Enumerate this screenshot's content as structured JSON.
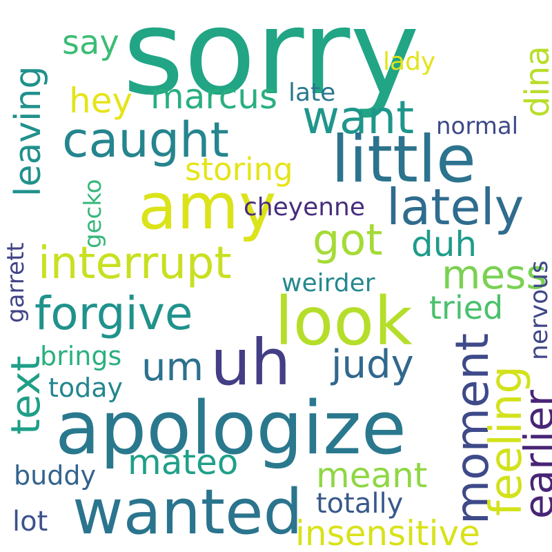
{
  "words": {
    "sorry": {
      "text": "sorry",
      "color": "#21A585"
    },
    "little": {
      "text": "little",
      "color": "#2C738E"
    },
    "amy": {
      "text": "amy",
      "color": "#DBE31A"
    },
    "apologize": {
      "text": "apologize",
      "color": "#2A788E"
    },
    "look": {
      "text": "look",
      "color": "#B5DE2B"
    },
    "uh": {
      "text": "uh",
      "color": "#433E85"
    },
    "wanted": {
      "text": "wanted",
      "color": "#2B748E"
    },
    "lately": {
      "text": "lately",
      "color": "#2F6C8E"
    },
    "caught": {
      "text": "caught",
      "color": "#25858E"
    },
    "want": {
      "text": "want",
      "color": "#1F968B"
    },
    "interrupt": {
      "text": "interrupt",
      "color": "#C8E020"
    },
    "forgive": {
      "text": "forgive",
      "color": "#20928C"
    },
    "got": {
      "text": "got",
      "color": "#A5DB36"
    },
    "moment": {
      "text": "moment",
      "color": "#3E4A89"
    },
    "feeling": {
      "text": "feeling",
      "color": "#D2E21B"
    },
    "earlier": {
      "text": "earlier",
      "color": "#482576"
    },
    "marcus": {
      "text": "marcus",
      "color": "#29AF7F"
    },
    "hey": {
      "text": "hey",
      "color": "#E5E419"
    },
    "leaving": {
      "text": "leaving",
      "color": "#21918C"
    },
    "judy": {
      "text": "judy",
      "color": "#31688E"
    },
    "um": {
      "text": "um",
      "color": "#2D718E"
    },
    "mess": {
      "text": "mess",
      "color": "#7AD151"
    },
    "duh": {
      "text": "duh",
      "color": "#1E9B8A"
    },
    "mateo": {
      "text": "mateo",
      "color": "#1FA088"
    },
    "meant": {
      "text": "meant",
      "color": "#8FD744"
    },
    "insensitive": {
      "text": "insensitive",
      "color": "#D8E219"
    },
    "text": {
      "text": "text",
      "color": "#1F9F88"
    },
    "say": {
      "text": "say",
      "color": "#3CBC75"
    },
    "storing": {
      "text": "storing",
      "color": "#E5E419"
    },
    "tried": {
      "text": "tried",
      "color": "#4AC16D"
    },
    "dina": {
      "text": "dina",
      "color": "#B8DE29"
    },
    "totally": {
      "text": "totally",
      "color": "#38598C"
    },
    "lot": {
      "text": "lot",
      "color": "#3B528B"
    },
    "today": {
      "text": "today",
      "color": "#24868E"
    },
    "brings": {
      "text": "brings",
      "color": "#2BB07F"
    },
    "buddy": {
      "text": "buddy",
      "color": "#33628D"
    },
    "cheyenne": {
      "text": "cheyenne",
      "color": "#472D7B"
    },
    "weirder": {
      "text": "weirder",
      "color": "#23898E"
    },
    "late": {
      "text": "late",
      "color": "#2A788E"
    },
    "normal": {
      "text": "normal",
      "color": "#3E4989"
    },
    "lady": {
      "text": "lady",
      "color": "#E2E418"
    },
    "nervous": {
      "text": "nervous",
      "color": "#3F4788"
    },
    "gecko": {
      "text": "gecko",
      "color": "#35B779"
    },
    "garrett": {
      "text": "garrett",
      "color": "#414487"
    }
  }
}
